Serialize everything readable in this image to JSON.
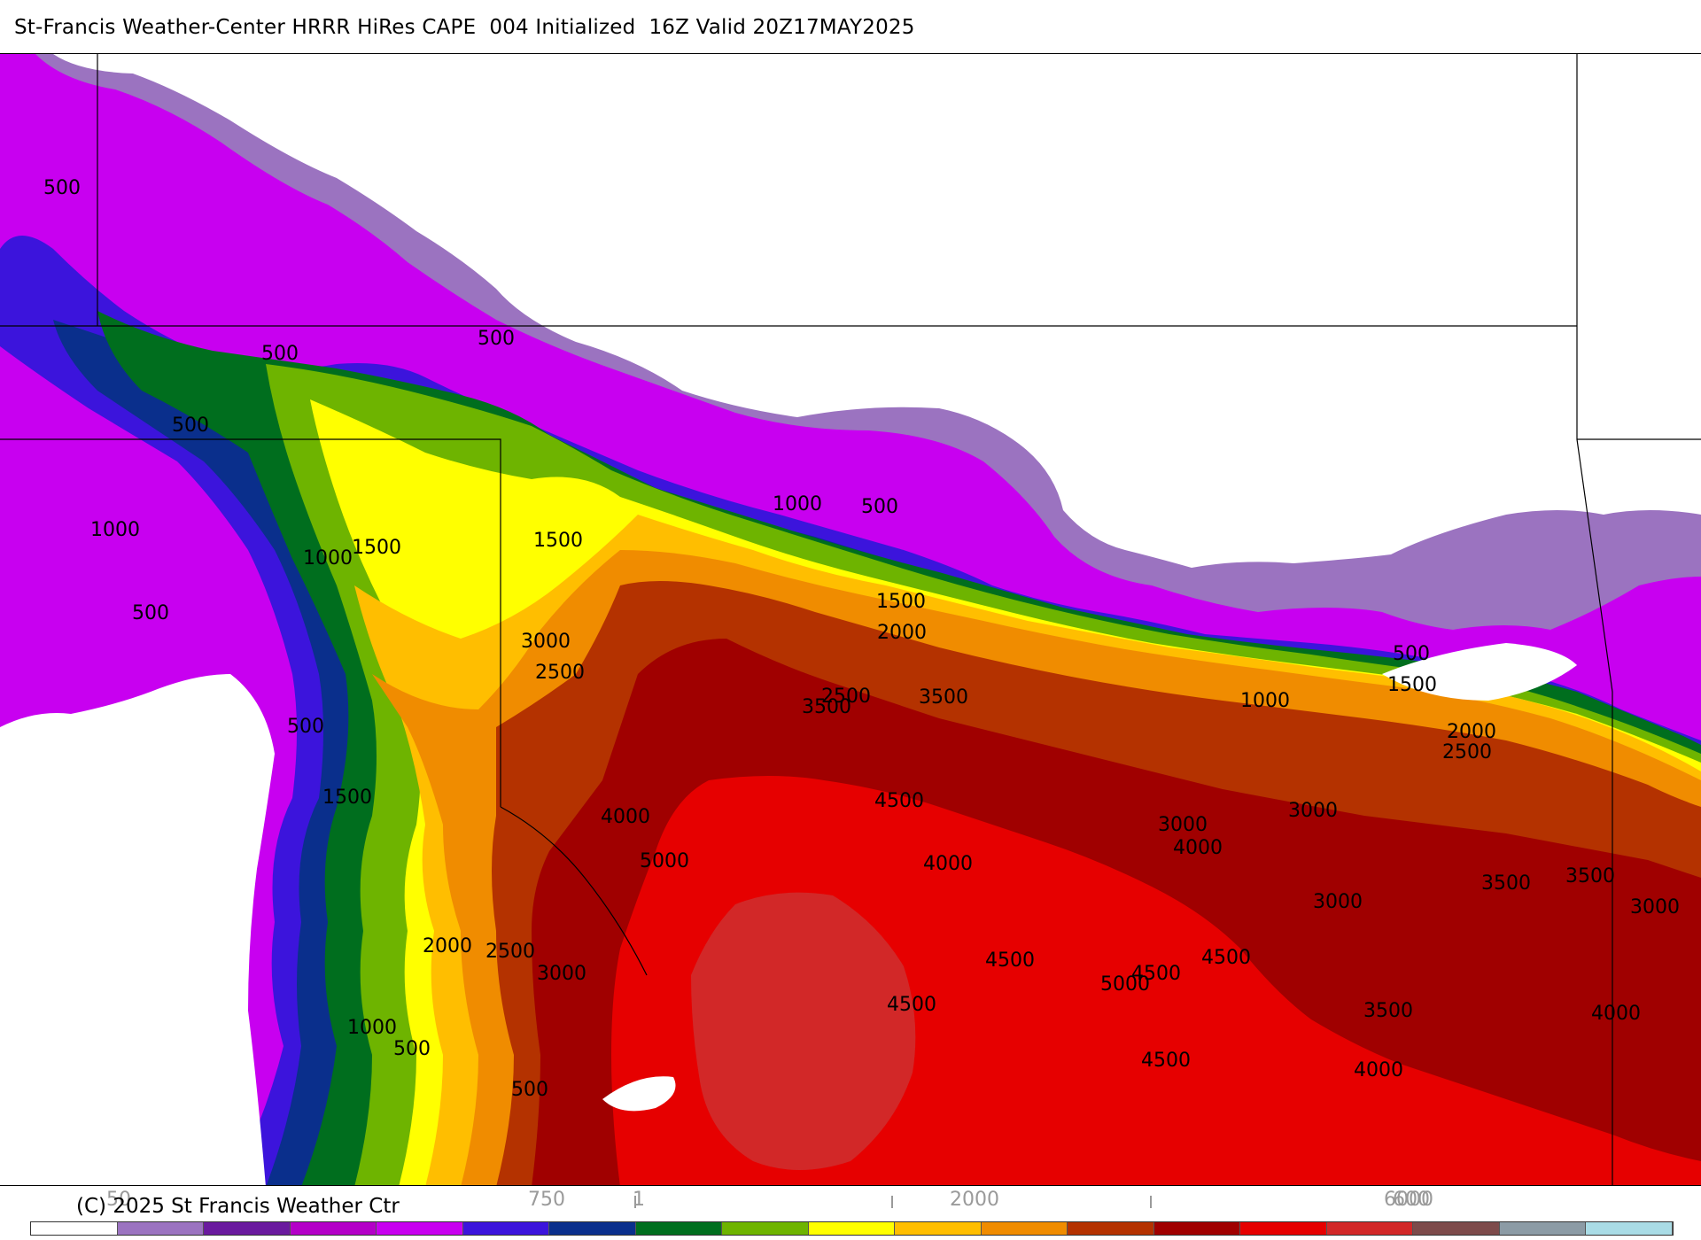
{
  "title": "St-Francis Weather-Center HRRR HiRes CAPE  004 Initialized  16Z Valid 20Z17MAY2025",
  "copyright": "(C) 2025 St Francis Weather Ctr",
  "legend": {
    "colors": [
      "#ffffff",
      "#9b73c0",
      "#6a1a9e",
      "#b400c8",
      "#c800f0",
      "#3c14dc",
      "#0a2f8c",
      "#006e1e",
      "#6eb400",
      "#ffff00",
      "#ffbe00",
      "#f08c00",
      "#b43200",
      "#a00000",
      "#e60000",
      "#d22828",
      "#7d4b4b",
      "#8c9ba5",
      "#aadce6"
    ],
    "tick_labels": [
      "50",
      "750",
      "2000",
      "6000"
    ],
    "overstruck_ticks": [
      "600",
      "1"
    ]
  },
  "contour_labels": [
    "500",
    "500",
    "1000",
    "500",
    "500",
    "500",
    "1000",
    "1500",
    "500",
    "1500",
    "1000",
    "500",
    "1500",
    "2000",
    "2500",
    "3500",
    "4000",
    "5000",
    "3000",
    "2500",
    "1500",
    "2000",
    "1000",
    "500",
    "500",
    "2500",
    "3000",
    "3500",
    "4500",
    "4000",
    "4500",
    "5000",
    "4500",
    "4500",
    "4500",
    "4000",
    "3000",
    "3000",
    "3000",
    "1000",
    "500",
    "1500",
    "2000",
    "2500",
    "3500",
    "3500",
    "3000",
    "4000",
    "3500",
    "4000",
    "4500"
  ]
}
